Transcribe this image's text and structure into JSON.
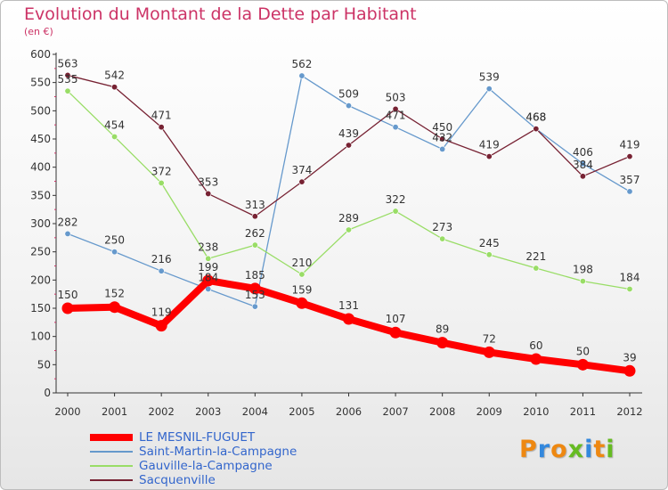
{
  "title": "Evolution du Montant de la Dette par Habitant",
  "subtitle": "(en €)",
  "logo_text": "Proxiti",
  "logo_colors": [
    "#ee8811",
    "#3388dd",
    "#ee8811",
    "#66bb22",
    "#3388dd",
    "#ee8811",
    "#66bb22"
  ],
  "chart_data": {
    "type": "line",
    "title": "Evolution du Montant de la Dette par Habitant",
    "subtitle": "(en €)",
    "x": [
      2000,
      2001,
      2002,
      2003,
      2004,
      2005,
      2006,
      2007,
      2008,
      2009,
      2010,
      2011,
      2012
    ],
    "ylim": [
      0,
      600
    ],
    "y_ticks": [
      0,
      50,
      100,
      150,
      200,
      250,
      300,
      350,
      400,
      450,
      500,
      550,
      600
    ],
    "grid": false,
    "legend_position": "bottom-left",
    "series": [
      {
        "name": "LE MESNIL-FUGUET",
        "color": "#ff0000",
        "values": [
          150,
          152,
          119,
          199,
          185,
          159,
          131,
          107,
          89,
          72,
          60,
          50,
          39
        ]
      },
      {
        "name": "Saint-Martin-la-Campagne",
        "color": "#6699cc",
        "values": [
          282,
          250,
          216,
          184,
          153,
          562,
          509,
          471,
          432,
          539,
          468,
          406,
          357
        ]
      },
      {
        "name": "Gauville-la-Campagne",
        "color": "#99dd66",
        "values": [
          535,
          454,
          372,
          238,
          262,
          210,
          289,
          322,
          273,
          245,
          221,
          198,
          184
        ]
      },
      {
        "name": "Sacquenville",
        "color": "#772233",
        "values": [
          563,
          542,
          471,
          353,
          313,
          374,
          439,
          503,
          450,
          419,
          468,
          384,
          419
        ]
      }
    ]
  }
}
